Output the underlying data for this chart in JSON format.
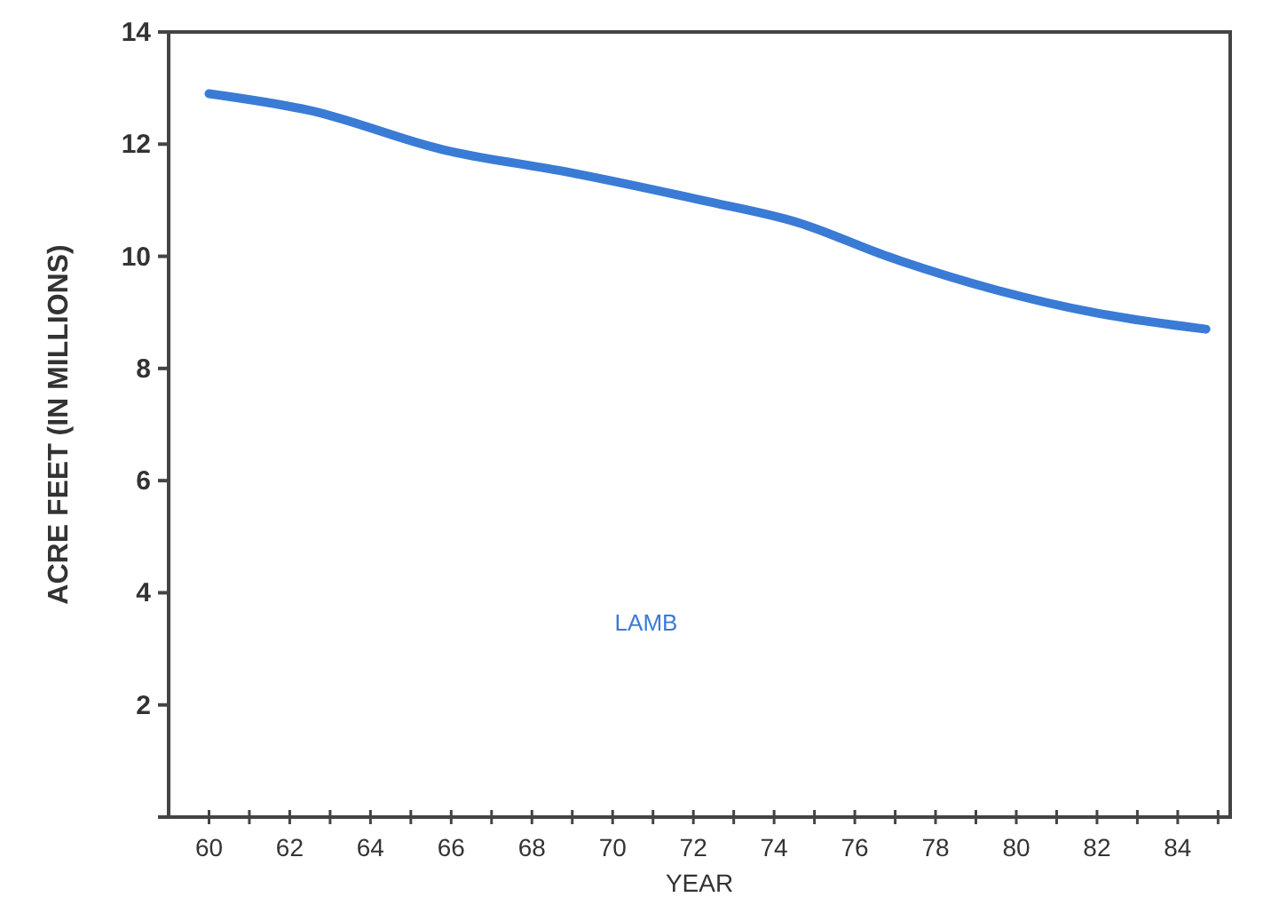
{
  "chart_data": {
    "type": "line",
    "xlabel": "YEAR",
    "ylabel": "ACRE FEET (IN MILLIONS)",
    "series": [
      {
        "name": "LAMB",
        "color": "#3a7bd5",
        "x": [
          60,
          62.5,
          65.8,
          68.9,
          72.2,
          74.6,
          76.8,
          79.5,
          81.9,
          84.7
        ],
        "values": [
          12.9,
          12.6,
          11.9,
          11.5,
          11.0,
          10.6,
          10.0,
          9.4,
          9.0,
          8.7
        ]
      }
    ],
    "xlim": [
      59,
      85.3
    ],
    "ylim": [
      0,
      14
    ],
    "xticks": [
      60,
      {
        "value": 61,
        "label": null
      },
      62,
      {
        "value": 63,
        "label": null
      },
      64,
      {
        "value": 65,
        "label": null
      },
      66,
      {
        "value": 67,
        "label": null
      },
      68,
      {
        "value": 69,
        "label": null
      },
      70,
      {
        "value": 71,
        "label": null
      },
      72,
      {
        "value": 73,
        "label": null
      },
      74,
      {
        "value": 75,
        "label": null
      },
      76,
      {
        "value": 77,
        "label": null
      },
      78,
      {
        "value": 79,
        "label": null
      },
      80,
      {
        "value": 81,
        "label": null
      },
      82,
      {
        "value": 83,
        "label": null
      },
      84,
      {
        "value": 85,
        "label": null
      }
    ],
    "yticks": [
      {
        "value": 0,
        "label": null
      },
      2,
      4,
      6,
      8,
      10,
      12,
      14
    ],
    "grid": false,
    "marker": "none",
    "line_style": "solid"
  }
}
